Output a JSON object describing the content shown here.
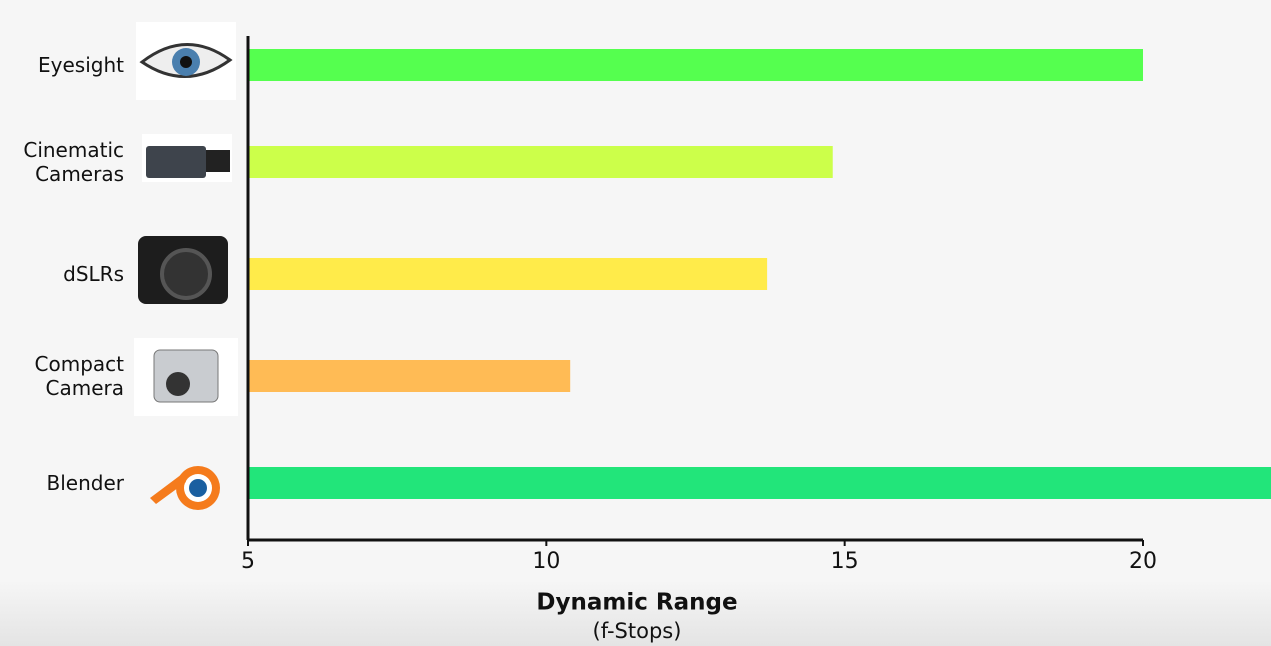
{
  "chart_data": {
    "type": "barh",
    "categories": [
      "Eyesight",
      "Cinematic Cameras",
      "dSLRs",
      "Compact Camera",
      "Blender"
    ],
    "values": [
      20,
      14.8,
      13.7,
      10.4,
      22.2
    ],
    "colors": [
      "#55ff4f",
      "#ccff4a",
      "#ffeb4a",
      "#ffbb55",
      "#22e57a"
    ],
    "xlim": [
      5,
      20
    ],
    "xticks": [
      5,
      10,
      15,
      20
    ],
    "xlabel": "Dynamic Range",
    "xlabel_sub": "(f-Stops)"
  }
}
